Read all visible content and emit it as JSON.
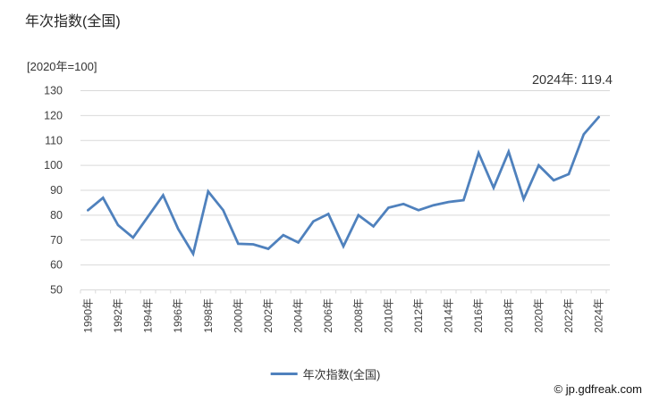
{
  "title": "年次指数(全国)",
  "unit_label": "[2020年=100]",
  "annotation": "2024年: 119.4",
  "legend": {
    "label": "年次指数(全国)"
  },
  "footer": "© jp.gdfreak.com",
  "colors": {
    "line": "#4f81bd",
    "grid": "#d9d9d9",
    "tick_text": "#404040",
    "title_text": "#262626"
  },
  "chart_data": {
    "type": "line",
    "title": "年次指数(全国)",
    "subtitle": "[2020年=100]",
    "annotation": "2024年: 119.4",
    "x": [
      1990,
      1991,
      1992,
      1993,
      1994,
      1995,
      1996,
      1997,
      1998,
      1999,
      2000,
      2001,
      2002,
      2003,
      2004,
      2005,
      2006,
      2007,
      2008,
      2009,
      2010,
      2011,
      2012,
      2013,
      2014,
      2015,
      2016,
      2017,
      2018,
      2019,
      2020,
      2021,
      2022,
      2023,
      2024
    ],
    "x_tick_suffix": "年",
    "x_label_every": 2,
    "series": [
      {
        "name": "年次指数(全国)",
        "color": "#4f81bd",
        "values": [
          82,
          87,
          76,
          71,
          79.5,
          88,
          74.5,
          64.5,
          89.5,
          82,
          68.5,
          68.3,
          66.5,
          72,
          69,
          77.5,
          80.5,
          67.5,
          80,
          75.5,
          83,
          84.5,
          82,
          84,
          85.3,
          86,
          105,
          91,
          105.5,
          86.5,
          100,
          94,
          96.5,
          112.5,
          119.4
        ]
      }
    ],
    "ylim": [
      50,
      130
    ],
    "yticks": [
      130,
      120,
      110,
      100,
      90,
      80,
      70,
      60,
      50
    ],
    "grid": true,
    "legend_position": "bottom"
  }
}
